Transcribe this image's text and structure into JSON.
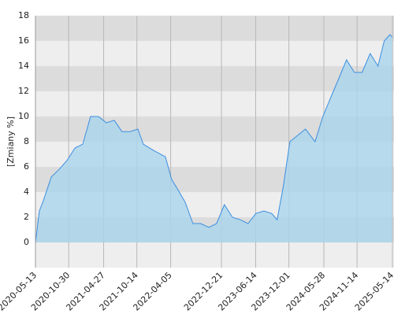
{
  "chart_data": {
    "type": "area",
    "y_label": "[Zmiany %]",
    "x": [
      "2020-05-13",
      "2020-06-02",
      "2020-06-22",
      "2020-08-02",
      "2020-09-11",
      "2020-10-21",
      "2020-12-01",
      "2021-01-10",
      "2021-02-19",
      "2021-03-31",
      "2021-05-11",
      "2021-06-20",
      "2021-07-30",
      "2021-09-09",
      "2021-10-19",
      "2021-11-16",
      "2022-01-08",
      "2022-03-09",
      "2022-04-10",
      "2022-05-08",
      "2022-06-18",
      "2022-07-28",
      "2022-09-06",
      "2022-10-17",
      "2022-11-26",
      "2023-01-05",
      "2023-02-15",
      "2023-03-27",
      "2023-05-06",
      "2023-06-15",
      "2023-07-26",
      "2023-09-04",
      "2023-10-02",
      "2023-11-03",
      "2023-12-06",
      "2024-01-15",
      "2024-02-24",
      "2024-04-13",
      "2024-05-23",
      "2024-07-02",
      "2024-08-12",
      "2024-09-21",
      "2024-10-31",
      "2024-12-10",
      "2025-01-20",
      "2025-03-01",
      "2025-04-02",
      "2025-05-01",
      "2025-05-13"
    ],
    "values": [
      0,
      2.5,
      3.3,
      5.2,
      5.8,
      6.5,
      7.5,
      7.8,
      10.0,
      10.0,
      9.5,
      9.7,
      8.8,
      8.8,
      9.0,
      7.8,
      7.3,
      6.8,
      5.0,
      4.3,
      3.2,
      1.5,
      1.5,
      1.2,
      1.5,
      3.0,
      2.0,
      1.8,
      1.5,
      2.3,
      2.5,
      2.3,
      1.8,
      4.5,
      8.0,
      8.5,
      9.0,
      8.0,
      10.0,
      11.5,
      13.0,
      14.5,
      13.5,
      13.5,
      15.0,
      14.0,
      16.0,
      16.5,
      16.3
    ],
    "color": "#3d8fe0",
    "fill": "#a9d5ec",
    "xlim": [
      "2020-05-13",
      "2025-05-22"
    ],
    "xticks": [
      "2020-05-13",
      "2020-10-30",
      "2021-04-27",
      "2021-10-14",
      "2022-04-05",
      "2022-12-21",
      "2023-06-14",
      "2023-12-01",
      "2024-05-28",
      "2024-11-14",
      "2025-05-14"
    ],
    "ylim": [
      -2,
      18
    ],
    "yticks": [
      0,
      2,
      4,
      6,
      8,
      10,
      12,
      14,
      16,
      18
    ],
    "grid": true
  }
}
